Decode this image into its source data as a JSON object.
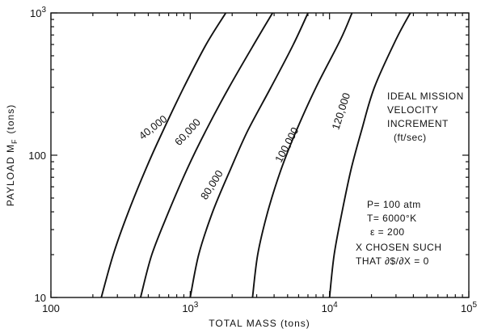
{
  "chart_data": {
    "type": "line",
    "xlabel": "TOTAL MASS (tons)",
    "ylabel": "PAYLOAD M",
    "ylabel_subscript": "F",
    "ylabel_unit": "(tons)",
    "x_scale": "log",
    "y_scale": "log",
    "xlim": [
      100,
      100000
    ],
    "ylim": [
      10,
      1000
    ],
    "grid": false,
    "x_ticks": [
      {
        "value": 100,
        "base": "100",
        "exp": ""
      },
      {
        "value": 1000,
        "base": "10",
        "exp": "3"
      },
      {
        "value": 10000,
        "base": "10",
        "exp": "4"
      },
      {
        "value": 100000,
        "base": "10",
        "exp": "5"
      }
    ],
    "y_ticks": [
      {
        "value": 10,
        "base": "10",
        "exp": ""
      },
      {
        "value": 100,
        "base": "100",
        "exp": ""
      },
      {
        "value": 1000,
        "base": "10",
        "exp": "3"
      }
    ],
    "series": [
      {
        "name": "40,000",
        "points": [
          [
            230,
            10
          ],
          [
            280,
            20
          ],
          [
            360,
            40
          ],
          [
            480,
            80
          ],
          [
            620,
            140
          ],
          [
            900,
            300
          ],
          [
            1300,
            600
          ],
          [
            1800,
            1000
          ]
        ]
      },
      {
        "name": "60,000",
        "points": [
          [
            440,
            10
          ],
          [
            530,
            20
          ],
          [
            700,
            40
          ],
          [
            950,
            80
          ],
          [
            1300,
            150
          ],
          [
            1900,
            300
          ],
          [
            3000,
            650
          ],
          [
            3900,
            1000
          ]
        ]
      },
      {
        "name": "80,000",
        "points": [
          [
            1000,
            10
          ],
          [
            1150,
            20
          ],
          [
            1450,
            40
          ],
          [
            1950,
            80
          ],
          [
            2600,
            150
          ],
          [
            3800,
            300
          ],
          [
            5500,
            600
          ],
          [
            7000,
            1000
          ]
        ]
      },
      {
        "name": "100,000",
        "points": [
          [
            2800,
            10
          ],
          [
            3050,
            20
          ],
          [
            3600,
            40
          ],
          [
            4500,
            80
          ],
          [
            5800,
            150
          ],
          [
            8000,
            300
          ],
          [
            12000,
            650
          ],
          [
            14500,
            1000
          ]
        ]
      },
      {
        "name": "120,000",
        "points": [
          [
            10000,
            10
          ],
          [
            10800,
            20
          ],
          [
            12300,
            40
          ],
          [
            14300,
            80
          ],
          [
            17000,
            150
          ],
          [
            21000,
            300
          ],
          [
            30000,
            650
          ],
          [
            38000,
            1000
          ]
        ]
      }
    ],
    "curve_labels": [
      {
        "text": "40,000",
        "x": 560,
        "y": 150,
        "rotate": -38
      },
      {
        "text": "60,000",
        "x": 1000,
        "y": 140,
        "rotate": -47
      },
      {
        "text": "80,000",
        "x": 1500,
        "y": 60,
        "rotate": -58
      },
      {
        "text": "100,000",
        "x": 5200,
        "y": 115,
        "rotate": -62
      },
      {
        "text": "120,000",
        "x": 12800,
        "y": 200,
        "rotate": -72
      }
    ],
    "annotations": {
      "legend_title": [
        "IDEAL MISSION",
        "VELOCITY",
        "INCREMENT",
        "(ft/sec)"
      ],
      "conditions": [
        "P= 100 atm",
        "T= 6000°K",
        "ε = 200",
        "X CHOSEN SUCH",
        "THAT ∂$/∂X = 0"
      ]
    }
  }
}
